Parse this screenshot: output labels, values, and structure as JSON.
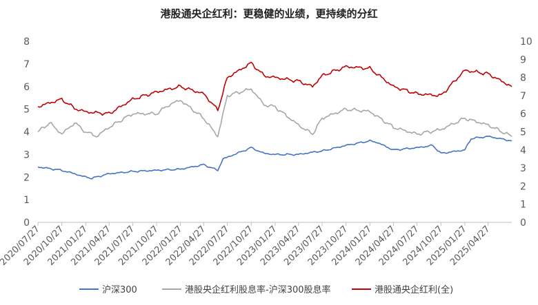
{
  "chart_data": {
    "type": "line",
    "title": "港股通央企红利：更稳健的业绩，更持续的分红",
    "y_left": {
      "min": 0,
      "max": 8,
      "ticks": [
        "0",
        "1",
        "2",
        "3",
        "4",
        "5",
        "6",
        "7",
        "8"
      ]
    },
    "y_right": {
      "min": 0,
      "max": 10,
      "ticks": [
        "0",
        "1",
        "2",
        "3",
        "4",
        "5",
        "6",
        "7",
        "8",
        "9",
        "10"
      ]
    },
    "x_range": [
      "2020/07/27",
      "2025/07/27"
    ],
    "x_ticks": [
      "2020/07/27",
      "2020/10/27",
      "2021/01/27",
      "2021/04/27",
      "2021/07/27",
      "2021/10/27",
      "2022/01/27",
      "2022/04/27",
      "2022/07/27",
      "2022/10/27",
      "2023/01/27",
      "2023/04/27",
      "2023/07/27",
      "2023/10/27",
      "2024/01/27",
      "2024/04/27",
      "2024/07/27",
      "2024/10/27",
      "2025/01/27",
      "2025/04/27"
    ],
    "legend_position": "bottom",
    "grid": false,
    "series": [
      {
        "name": "沪深300",
        "axis": "left",
        "color": "#4472C4",
        "points": [
          [
            "2020/07/27",
            2.45
          ],
          [
            "2020/10/27",
            2.3
          ],
          [
            "2020/12/15",
            2.15
          ],
          [
            "2021/01/27",
            2.0
          ],
          [
            "2021/02/20",
            1.95
          ],
          [
            "2021/04/27",
            2.15
          ],
          [
            "2021/07/27",
            2.25
          ],
          [
            "2021/10/27",
            2.3
          ],
          [
            "2022/01/27",
            2.35
          ],
          [
            "2022/04/27",
            2.55
          ],
          [
            "2022/06/20",
            2.3
          ],
          [
            "2022/07/10",
            2.8
          ],
          [
            "2022/10/27",
            3.3
          ],
          [
            "2022/12/15",
            3.05
          ],
          [
            "2023/01/27",
            3.0
          ],
          [
            "2023/04/27",
            3.0
          ],
          [
            "2023/06/20",
            3.1
          ],
          [
            "2023/07/27",
            3.15
          ],
          [
            "2023/10/27",
            3.4
          ],
          [
            "2024/01/27",
            3.6
          ],
          [
            "2024/02/20",
            3.55
          ],
          [
            "2024/04/27",
            3.2
          ],
          [
            "2024/07/27",
            3.3
          ],
          [
            "2024/09/25",
            3.4
          ],
          [
            "2024/10/27",
            3.05
          ],
          [
            "2025/01/27",
            3.2
          ],
          [
            "2025/02/20",
            3.7
          ],
          [
            "2025/04/27",
            3.8
          ],
          [
            "2025/07/27",
            3.6
          ]
        ]
      },
      {
        "name": "港股央企红利股息率-沪深300股息率",
        "axis": "left",
        "color": "#A6A6A6",
        "points": [
          [
            "2020/07/27",
            4.0
          ],
          [
            "2020/09/10",
            4.4
          ],
          [
            "2020/10/27",
            3.9
          ],
          [
            "2020/12/15",
            4.4
          ],
          [
            "2021/01/27",
            4.0
          ],
          [
            "2021/03/10",
            3.8
          ],
          [
            "2021/04/27",
            4.2
          ],
          [
            "2021/06/10",
            4.5
          ],
          [
            "2021/07/27",
            4.8
          ],
          [
            "2021/10/27",
            4.8
          ],
          [
            "2021/12/15",
            5.2
          ],
          [
            "2022/01/27",
            5.4
          ],
          [
            "2022/04/27",
            4.6
          ],
          [
            "2022/06/20",
            3.8
          ],
          [
            "2022/07/27",
            5.6
          ],
          [
            "2022/10/27",
            5.9
          ],
          [
            "2022/12/15",
            5.2
          ],
          [
            "2023/01/27",
            5.1
          ],
          [
            "2023/04/27",
            4.3
          ],
          [
            "2023/06/20",
            3.9
          ],
          [
            "2023/07/27",
            4.6
          ],
          [
            "2023/10/27",
            5.0
          ],
          [
            "2024/01/27",
            4.9
          ],
          [
            "2024/04/27",
            4.2
          ],
          [
            "2024/07/27",
            3.9
          ],
          [
            "2024/10/27",
            4.1
          ],
          [
            "2025/01/27",
            4.6
          ],
          [
            "2025/04/27",
            4.3
          ],
          [
            "2025/07/27",
            3.8
          ]
        ]
      },
      {
        "name": "港股通央企红利(全)",
        "axis": "right",
        "color": "#C00000",
        "points": [
          [
            "2020/07/27",
            6.4
          ],
          [
            "2020/10/27",
            6.8
          ],
          [
            "2020/12/15",
            6.3
          ],
          [
            "2021/01/27",
            6.1
          ],
          [
            "2021/04/27",
            6.0
          ],
          [
            "2021/07/27",
            6.8
          ],
          [
            "2021/10/27",
            7.2
          ],
          [
            "2022/01/27",
            7.5
          ],
          [
            "2022/04/27",
            7.1
          ],
          [
            "2022/06/20",
            6.2
          ],
          [
            "2022/07/27",
            8.0
          ],
          [
            "2022/10/27",
            8.8
          ],
          [
            "2022/12/15",
            8.1
          ],
          [
            "2023/01/27",
            8.0
          ],
          [
            "2023/04/27",
            7.8
          ],
          [
            "2023/06/20",
            7.5
          ],
          [
            "2023/07/27",
            8.1
          ],
          [
            "2023/10/27",
            8.6
          ],
          [
            "2024/01/27",
            8.5
          ],
          [
            "2024/04/27",
            7.5
          ],
          [
            "2024/07/27",
            7.1
          ],
          [
            "2024/10/27",
            7.0
          ],
          [
            "2025/01/27",
            8.4
          ],
          [
            "2025/04/27",
            8.2
          ],
          [
            "2025/07/27",
            7.5
          ]
        ]
      }
    ]
  }
}
